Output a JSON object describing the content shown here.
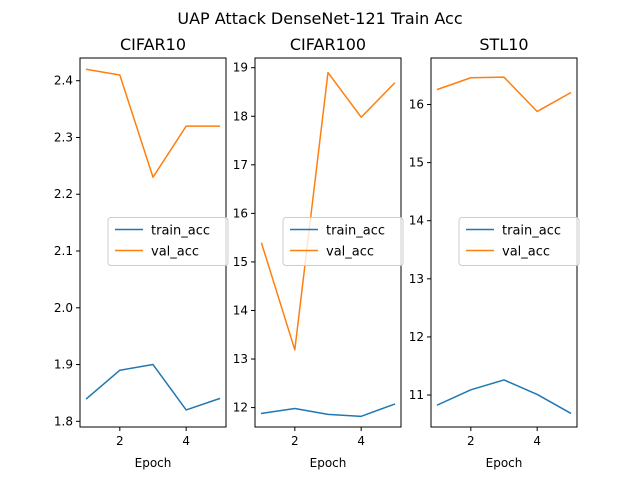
{
  "title": "UAP Attack DenseNet-121 Train Acc",
  "chart_data": [
    {
      "type": "line",
      "title": "CIFAR10",
      "xlabel": "Epoch",
      "ylabel": "",
      "x": [
        1,
        2,
        3,
        4,
        5
      ],
      "xlim": [
        0.8,
        5.2
      ],
      "ylim": [
        1.79,
        2.44
      ],
      "xticks": [
        2,
        4
      ],
      "yticks": [
        1.8,
        1.9,
        2.0,
        2.1,
        2.2,
        2.3,
        2.4
      ],
      "series": [
        {
          "name": "train_acc",
          "color": "#1f77b4",
          "values": [
            1.84,
            1.89,
            1.9,
            1.82,
            1.84
          ]
        },
        {
          "name": "val_acc",
          "color": "#ff7f0e",
          "values": [
            2.42,
            2.41,
            2.23,
            2.32,
            2.32
          ]
        }
      ],
      "legend": "center-right",
      "grid": false
    },
    {
      "type": "line",
      "title": "CIFAR100",
      "xlabel": "Epoch",
      "ylabel": "",
      "x": [
        1,
        2,
        3,
        4,
        5
      ],
      "xlim": [
        0.8,
        5.2
      ],
      "ylim": [
        11.6,
        19.2
      ],
      "xticks": [
        2,
        4
      ],
      "yticks": [
        12,
        13,
        14,
        15,
        16,
        17,
        18,
        19
      ],
      "series": [
        {
          "name": "train_acc",
          "color": "#1f77b4",
          "values": [
            11.88,
            11.98,
            11.86,
            11.82,
            12.07
          ]
        },
        {
          "name": "val_acc",
          "color": "#ff7f0e",
          "values": [
            15.38,
            13.19,
            18.9,
            17.98,
            18.68
          ]
        }
      ],
      "legend": "center-right",
      "grid": false
    },
    {
      "type": "line",
      "title": "STL10",
      "xlabel": "Epoch",
      "ylabel": "",
      "x": [
        1,
        2,
        3,
        4,
        5
      ],
      "xlim": [
        0.8,
        5.2
      ],
      "ylim": [
        10.45,
        16.8
      ],
      "xticks": [
        2,
        4
      ],
      "yticks": [
        11,
        12,
        13,
        14,
        15,
        16
      ],
      "series": [
        {
          "name": "train_acc",
          "color": "#1f77b4",
          "values": [
            10.83,
            11.09,
            11.26,
            11.01,
            10.69
          ]
        },
        {
          "name": "val_acc",
          "color": "#ff7f0e",
          "values": [
            16.26,
            16.46,
            16.47,
            15.88,
            16.2
          ]
        }
      ],
      "legend": "center-right",
      "grid": false
    }
  ]
}
